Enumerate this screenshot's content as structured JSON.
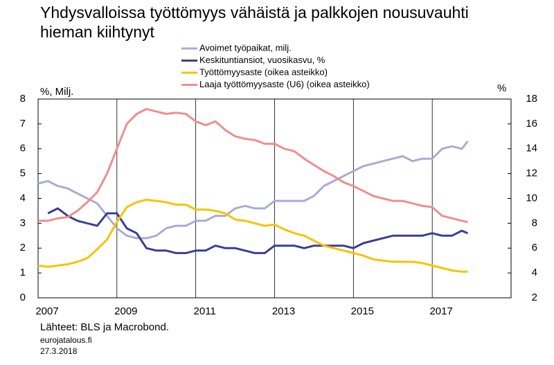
{
  "chart_data": {
    "type": "line",
    "title": "Yhdysvalloissa työttömyys vähäistä ja palkkojen nousuvauhti hieman kiihtynyt",
    "y_label": "%, Milj.",
    "y2_label": "%",
    "source": "Lähteet: BLS ja Macrobond.",
    "site": "eurojatalous.fi",
    "date": "27.3.2018",
    "x": [
      2007,
      2007.25,
      2007.5,
      2007.75,
      2008,
      2008.25,
      2008.5,
      2008.75,
      2009,
      2009.25,
      2009.5,
      2009.75,
      2010,
      2010.25,
      2010.5,
      2010.75,
      2011,
      2011.25,
      2011.5,
      2011.75,
      2012,
      2012.25,
      2012.5,
      2012.75,
      2013,
      2013.25,
      2013.5,
      2013.75,
      2014,
      2014.25,
      2014.5,
      2014.75,
      2015,
      2015.25,
      2015.5,
      2015.75,
      2016,
      2016.25,
      2016.5,
      2016.75,
      2017,
      2017.25,
      2017.5,
      2017.75,
      2017.9
    ],
    "series": [
      {
        "name": "Avoimet työpaikat, milj.",
        "color": "#a9abd6",
        "values": [
          4.6,
          4.7,
          4.5,
          4.4,
          4.2,
          4.0,
          3.8,
          3.3,
          2.8,
          2.5,
          2.4,
          2.4,
          2.5,
          2.8,
          2.9,
          2.9,
          3.1,
          3.1,
          3.3,
          3.3,
          3.6,
          3.7,
          3.6,
          3.6,
          3.9,
          3.9,
          3.9,
          3.9,
          4.1,
          4.5,
          4.7,
          4.9,
          5.1,
          5.3,
          5.4,
          5.5,
          5.6,
          5.7,
          5.5,
          5.6,
          5.6,
          6.0,
          6.1,
          6.0,
          6.3
        ]
      },
      {
        "name": "Keskituntiansiot, vuosikasvu, %",
        "color": "#3b3d94",
        "values": [
          null,
          3.4,
          3.6,
          3.3,
          3.1,
          3.0,
          2.9,
          3.4,
          3.4,
          2.8,
          2.6,
          2.0,
          1.9,
          1.9,
          1.8,
          1.8,
          1.9,
          1.9,
          2.1,
          2.0,
          2.0,
          1.9,
          1.8,
          1.8,
          2.1,
          2.1,
          2.1,
          2.0,
          2.1,
          2.1,
          2.1,
          2.1,
          2.0,
          2.2,
          2.3,
          2.4,
          2.5,
          2.5,
          2.5,
          2.5,
          2.6,
          2.5,
          2.5,
          2.7,
          2.6
        ]
      },
      {
        "name": "Työttömyysaste (oikea asteikko)",
        "color": "#f5c400",
        "axis": "y2",
        "values": [
          4.6,
          4.5,
          4.6,
          4.7,
          4.9,
          5.2,
          5.9,
          6.7,
          8.1,
          9.3,
          9.7,
          9.9,
          9.8,
          9.7,
          9.5,
          9.5,
          9.1,
          9.1,
          9.0,
          8.8,
          8.3,
          8.2,
          8.0,
          7.8,
          7.9,
          7.5,
          7.2,
          7.0,
          6.6,
          6.2,
          6.0,
          5.8,
          5.6,
          5.4,
          5.1,
          5.0,
          4.9,
          4.9,
          4.9,
          4.8,
          4.6,
          4.4,
          4.2,
          4.1,
          4.1
        ]
      },
      {
        "name": "Laaja työttömyysaste (U6) (oikea asteikko)",
        "color": "#ef8e8e",
        "axis": "y2",
        "values": [
          8.2,
          8.2,
          8.4,
          8.5,
          9.0,
          9.7,
          10.5,
          12.0,
          14.0,
          16.0,
          16.8,
          17.2,
          17.0,
          16.8,
          16.9,
          16.8,
          16.2,
          15.9,
          16.2,
          15.5,
          15.0,
          14.8,
          14.7,
          14.4,
          14.4,
          14.0,
          13.8,
          13.2,
          12.7,
          12.2,
          11.8,
          11.3,
          11.0,
          10.6,
          10.2,
          10.0,
          9.8,
          9.8,
          9.6,
          9.4,
          9.3,
          8.6,
          8.4,
          8.2,
          8.1
        ]
      }
    ],
    "xlim": [
      2007,
      2019
    ],
    "xticks": [
      2007,
      2009,
      2011,
      2013,
      2015,
      2017
    ],
    "ylim": [
      0,
      8
    ],
    "yticks": [
      0,
      1,
      2,
      3,
      4,
      5,
      6,
      7,
      8
    ],
    "y2lim": [
      2,
      18
    ],
    "y2ticks": [
      2,
      4,
      6,
      8,
      10,
      12,
      14,
      16,
      18
    ],
    "grid": "x"
  }
}
